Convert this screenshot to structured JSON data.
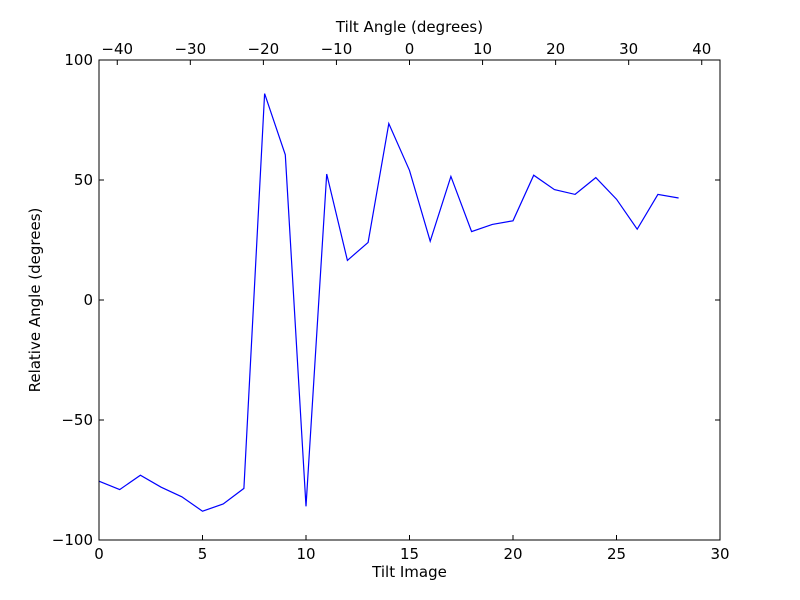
{
  "chart_data": {
    "type": "line",
    "xlabel": "Tilt Image",
    "ylabel": "Relative Angle (degrees)",
    "top_xlabel": "Tilt Angle (degrees)",
    "xlim": [
      0,
      30
    ],
    "ylim": [
      -100,
      100
    ],
    "top_xlim": [
      -42.5,
      42.5
    ],
    "x_ticks": [
      0,
      5,
      10,
      15,
      20,
      25,
      30
    ],
    "y_ticks": [
      -100,
      -50,
      0,
      50,
      100
    ],
    "top_x_ticks": [
      -40,
      -30,
      -20,
      -10,
      0,
      10,
      20,
      30,
      40
    ],
    "grid": false,
    "series_color": "#0000ff",
    "series": [
      {
        "x": [
          0,
          1,
          2,
          3,
          4,
          5,
          6,
          7,
          8,
          9,
          10,
          11,
          12,
          13,
          14,
          15,
          16,
          17,
          18,
          19,
          20,
          21,
          22,
          23,
          24,
          25,
          26,
          27,
          28
        ],
        "values": [
          -75.5,
          -79,
          -73,
          -78,
          -82,
          -88,
          -85,
          -78.5,
          86,
          60.5,
          -86,
          52.5,
          16.5,
          24,
          73.5,
          54,
          24.5,
          51.5,
          28.5,
          31.5,
          33,
          52,
          46,
          44,
          51,
          42,
          29.5,
          44,
          42.5
        ]
      }
    ]
  }
}
